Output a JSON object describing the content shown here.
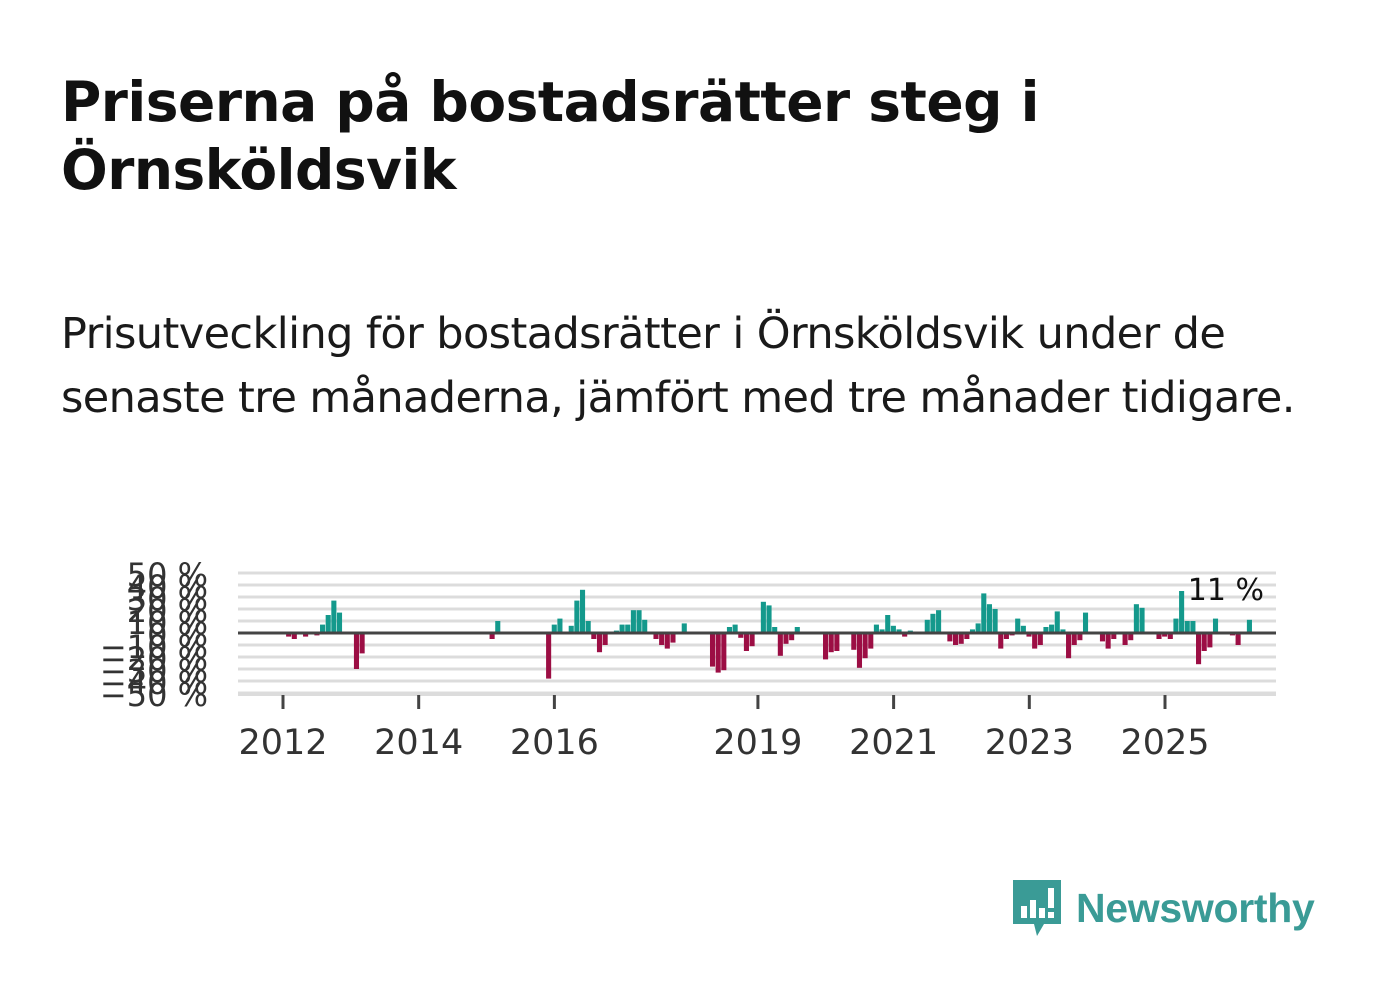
{
  "title": "Priserna på bostadsrätter steg i Örnsköldsvik",
  "subtitle": "Prisutveckling för bostadsrätter i Örnsköldsvik under de senaste tre månaderna, jämfört med tre månader tidigare.",
  "brand": {
    "name": "Newsworthy",
    "icon": "newsworthy-logo-icon"
  },
  "colors": {
    "positive": "#14998c",
    "negative": "#9c0e44",
    "zero_line": "#444444",
    "grid": "#dcdcdc",
    "brand": "#3a9b96"
  },
  "chart_data": {
    "type": "bar",
    "title": "Priserna på bostadsrätter steg i Örnsköldsvik",
    "xlabel": "",
    "ylabel": "",
    "unit": "%",
    "ylim": [
      -50,
      50
    ],
    "y_ticks": [
      -50,
      -40,
      -30,
      -20,
      -10,
      0,
      10,
      20,
      30,
      40,
      50
    ],
    "y_tick_labels": [
      "−50 %",
      "−40 %",
      "−30 %",
      "−20 %",
      "−10 %",
      "0 %",
      "10 %",
      "20 %",
      "30 %",
      "40 %",
      "50 %"
    ],
    "x_ticks": [
      "2012",
      "2014",
      "2016",
      "2019",
      "2021",
      "2023",
      "2025"
    ],
    "x_tick_positions": [
      2012.0,
      2014.0,
      2016.0,
      2019.0,
      2021.0,
      2023.0,
      2025.0
    ],
    "start": 2012.0,
    "step": 0.0833,
    "values": [
      0,
      -3,
      -5,
      0,
      -3,
      0,
      -2,
      7,
      15,
      27,
      17,
      0,
      0,
      -30,
      -17,
      0,
      0,
      0,
      0,
      0,
      0,
      0,
      0,
      0,
      0,
      0,
      0,
      0,
      0,
      0,
      0,
      0,
      0,
      0,
      0,
      0,
      0,
      -5,
      10,
      0,
      0,
      0,
      0,
      0,
      0,
      0,
      0,
      -38,
      7,
      12,
      0,
      6,
      27,
      36,
      10,
      -5,
      -16,
      -10,
      0,
      2,
      7,
      7,
      19,
      19,
      11,
      0,
      -5,
      -10,
      -13,
      -8,
      0,
      8,
      0,
      0,
      0,
      0,
      -28,
      -33,
      -31,
      5,
      7,
      -4,
      -15,
      -11,
      0,
      26,
      23,
      5,
      -19,
      -9,
      -6,
      5,
      0,
      0,
      0,
      0,
      -22,
      -16,
      -15,
      0,
      0,
      -14,
      -29,
      -21,
      -13,
      7,
      3,
      15,
      6,
      3,
      -3,
      2,
      0,
      0,
      11,
      16,
      19,
      0,
      -7,
      -10,
      -9,
      -5,
      3,
      8,
      33,
      24,
      20,
      -13,
      -5,
      -2,
      12,
      6,
      -3,
      -13,
      -10,
      5,
      7,
      18,
      3,
      -21,
      -10,
      -6,
      17,
      0,
      0,
      -7,
      -13,
      -5,
      0,
      -10,
      -6,
      24,
      21,
      0,
      0,
      -5,
      -3,
      -5,
      12,
      35,
      10,
      10,
      -26,
      -15,
      -12,
      12,
      0,
      0,
      -2,
      -10,
      0,
      11
    ],
    "final_label": "11 %"
  }
}
